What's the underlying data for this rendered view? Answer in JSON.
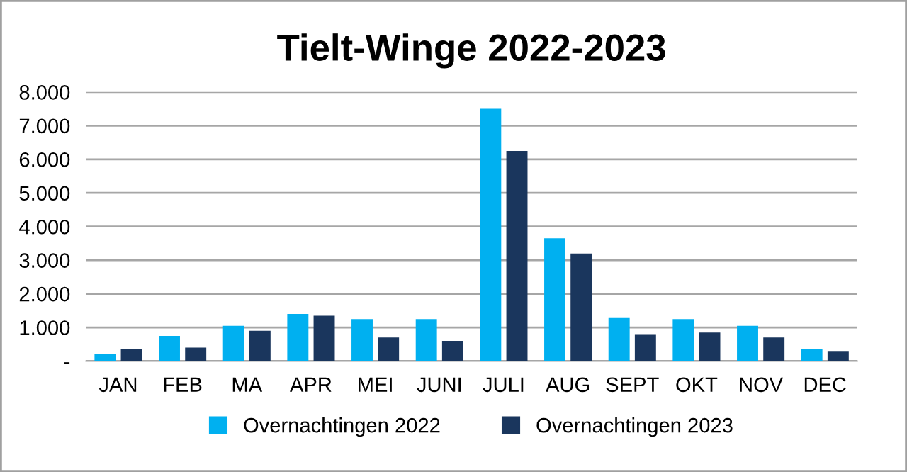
{
  "chart_data": {
    "type": "bar",
    "title": "Tielt-Winge 2022-2023",
    "categories": [
      "JAN",
      "FEB",
      "MA",
      "APR",
      "MEI",
      "JUNI",
      "JULI",
      "AUG",
      "SEPT",
      "OKT",
      "NOV",
      "DEC"
    ],
    "series": [
      {
        "name": "Overnachtingen 2022",
        "color": "#00b0f0",
        "values": [
          220,
          750,
          1050,
          1400,
          1250,
          1250,
          7500,
          3650,
          1300,
          1250,
          1050,
          350
        ]
      },
      {
        "name": "Overnachtingen 2023",
        "color": "#1a365d",
        "values": [
          350,
          400,
          900,
          1350,
          700,
          600,
          6250,
          3200,
          800,
          850,
          700,
          300
        ]
      }
    ],
    "ylim": [
      0,
      8000
    ],
    "yticks": [
      {
        "value": 0,
        "label": "-"
      },
      {
        "value": 1000,
        "label": "1.000"
      },
      {
        "value": 2000,
        "label": "2.000"
      },
      {
        "value": 3000,
        "label": "3.000"
      },
      {
        "value": 4000,
        "label": "4.000"
      },
      {
        "value": 5000,
        "label": "5.000"
      },
      {
        "value": 6000,
        "label": "6.000"
      },
      {
        "value": 7000,
        "label": "7.000"
      },
      {
        "value": 8000,
        "label": "8.000"
      }
    ],
    "grid": "y",
    "legend": "bottom"
  }
}
